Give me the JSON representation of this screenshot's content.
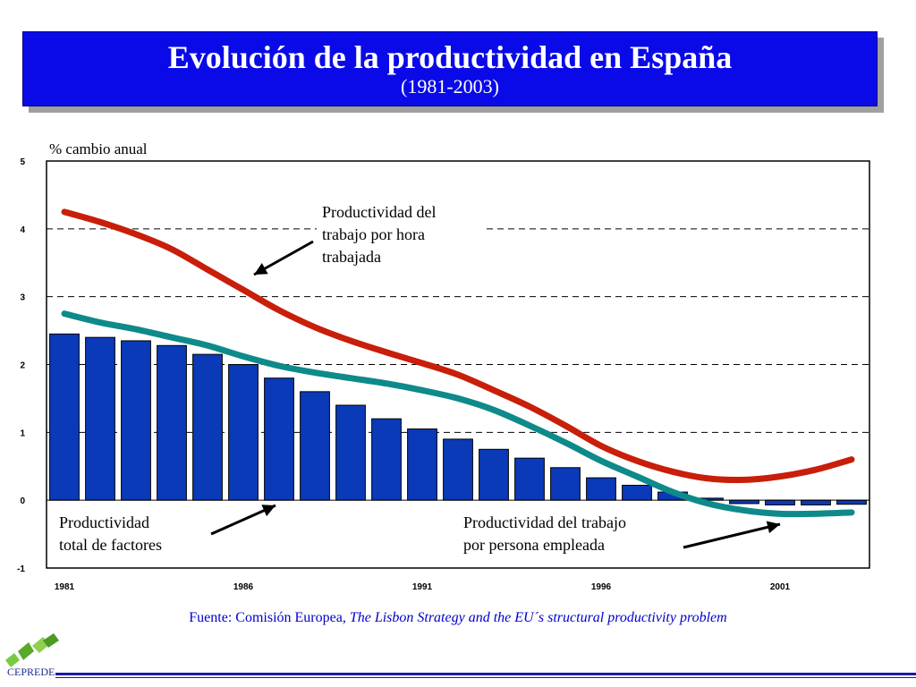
{
  "header": {
    "title": "Evolución de la productividad en España",
    "subtitle": "(1981-2003)"
  },
  "source": {
    "prefix": "Fuente: Comisión Europea,",
    "work": "The Lisbon Strategy and the EU´s structural productivity problem"
  },
  "logo": {
    "text": "CEPREDE"
  },
  "colors": {
    "banner": "#0a0ae8",
    "bars": "#0a3ab8",
    "labour_per_hour_line": "#c81e0a",
    "labour_per_employee_line": "#0e8a8a",
    "source_text": "#0000cc"
  },
  "chart_data": {
    "type": "bar",
    "ylabel": "% cambio anual",
    "ylim": [
      -1,
      5
    ],
    "yticks": [
      "5",
      "4",
      "3",
      "2",
      "1",
      "0",
      "-1"
    ],
    "xtick_labels": [
      "1981",
      "1986",
      "1991",
      "1996",
      "2001"
    ],
    "grid": "dashed horizontal at 1, 2, 3, 4",
    "x": [
      1981,
      1982,
      1983,
      1984,
      1985,
      1986,
      1987,
      1988,
      1989,
      1990,
      1991,
      1992,
      1993,
      1994,
      1995,
      1996,
      1997,
      1998,
      1999,
      2000,
      2001,
      2002,
      2003
    ],
    "series": [
      {
        "name": "Productividad total de factores",
        "kind": "bar",
        "values": [
          2.45,
          2.4,
          2.35,
          2.28,
          2.15,
          2.0,
          1.8,
          1.6,
          1.4,
          1.2,
          1.05,
          0.9,
          0.75,
          0.62,
          0.48,
          0.33,
          0.22,
          0.12,
          0.03,
          -0.05,
          -0.07,
          -0.07,
          -0.06
        ]
      },
      {
        "name": "Productividad del trabajo por hora trabajada",
        "kind": "line",
        "values": [
          4.25,
          4.1,
          3.92,
          3.7,
          3.4,
          3.1,
          2.8,
          2.55,
          2.35,
          2.18,
          2.02,
          1.85,
          1.62,
          1.38,
          1.1,
          0.8,
          0.58,
          0.42,
          0.32,
          0.3,
          0.35,
          0.45,
          0.6
        ]
      },
      {
        "name": "Productividad del trabajo por persona empleada",
        "kind": "line",
        "values": [
          2.75,
          2.62,
          2.52,
          2.4,
          2.28,
          2.12,
          1.98,
          1.88,
          1.8,
          1.72,
          1.62,
          1.5,
          1.33,
          1.1,
          0.85,
          0.58,
          0.35,
          0.12,
          -0.05,
          -0.15,
          -0.2,
          -0.2,
          -0.18
        ]
      }
    ],
    "annotations": [
      {
        "label": "labour_per_hour",
        "lines": [
          "Productividad del",
          "trabajo por hora",
          "trabajada"
        ]
      },
      {
        "label": "tfp",
        "lines": [
          "Productividad",
          "total de factores"
        ]
      },
      {
        "label": "labour_per_employee",
        "lines": [
          "Productividad del trabajo",
          "por persona empleada"
        ]
      }
    ]
  }
}
